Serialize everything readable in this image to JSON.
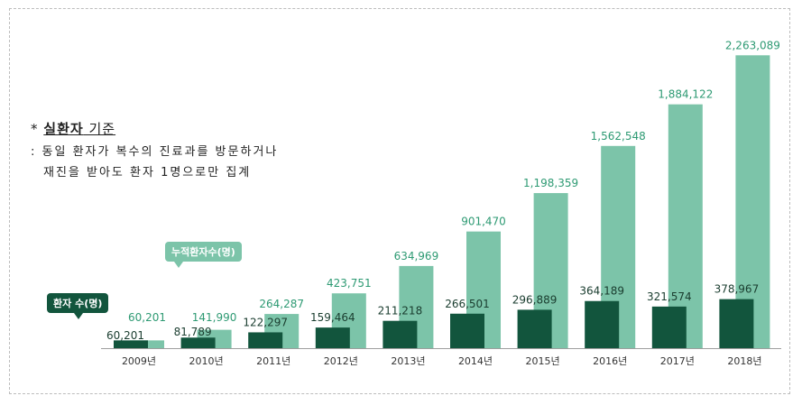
{
  "note": {
    "bullet": "*",
    "title_bold": "실환자",
    "title_rest": " 기준",
    "line2": ": 동일 환자가 복수의 진료과를 방문하거나",
    "line3": "재진을 받아도 환자 1명으로만 집계"
  },
  "legend": {
    "cumulative": "누적환자수(명)",
    "patients": "환자 수(명)"
  },
  "colors": {
    "cumulative": "#7cc4a9",
    "patients": "#12553d",
    "cumulative_label": "#2e9a73",
    "patients_label": "#1a3d2f"
  },
  "chart_data": {
    "type": "bar",
    "categories": [
      "2009년",
      "2010년",
      "2011년",
      "2012년",
      "2013년",
      "2014년",
      "2015년",
      "2016년",
      "2017년",
      "2018년"
    ],
    "series": [
      {
        "name": "환자 수(명)",
        "values": [
          60201,
          81789,
          122297,
          159464,
          211218,
          266501,
          296889,
          364189,
          321574,
          378967
        ],
        "labels": [
          "60,201",
          "81,789",
          "122,297",
          "159,464",
          "211,218",
          "266,501",
          "296,889",
          "364,189",
          "321,574",
          "378,967"
        ]
      },
      {
        "name": "누적환자수(명)",
        "values": [
          60201,
          141990,
          264287,
          423751,
          634969,
          901470,
          1198359,
          1562548,
          1884122,
          2263089
        ],
        "labels": [
          "60,201",
          "141,990",
          "264,287",
          "423,751",
          "634,969",
          "901,470",
          "1,198,359",
          "1,562,548",
          "1,884,122",
          "2,263,089"
        ]
      }
    ],
    "ylim": [
      0,
      2300000
    ]
  }
}
